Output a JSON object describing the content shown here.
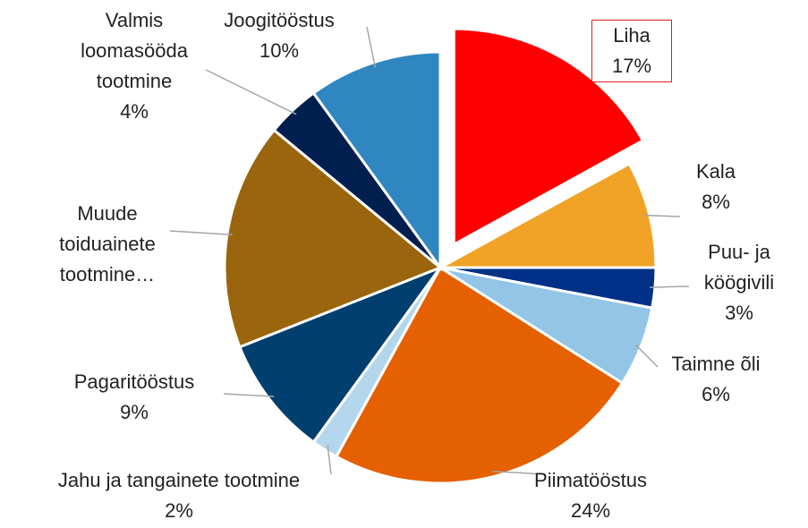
{
  "chart_data": {
    "type": "pie",
    "categories": [
      "Liha",
      "Kala",
      "Puu- ja köögivili",
      "Taimne õli",
      "Piimatööstus",
      "Jahu ja tangainete tootmine",
      "Pagaritööstus",
      "Muude toiduainete tootmine…",
      "Valmis loomasööda tootmine",
      "Joogitööstus"
    ],
    "values": [
      17,
      8,
      3,
      6,
      24,
      2,
      9,
      17,
      4,
      10
    ],
    "value_labels": [
      "17%",
      "8%",
      "3%",
      "6%",
      "24%",
      "2%",
      "9%",
      null,
      "4%",
      "10%"
    ],
    "colors": [
      "#ff0000",
      "#f0a326",
      "#003087",
      "#92c5e6",
      "#e46000",
      "#b4d6ec",
      "#003f6e",
      "#9a650c",
      "#001f4f",
      "#2f86c0"
    ],
    "exploded": [
      "Liha"
    ]
  }
}
